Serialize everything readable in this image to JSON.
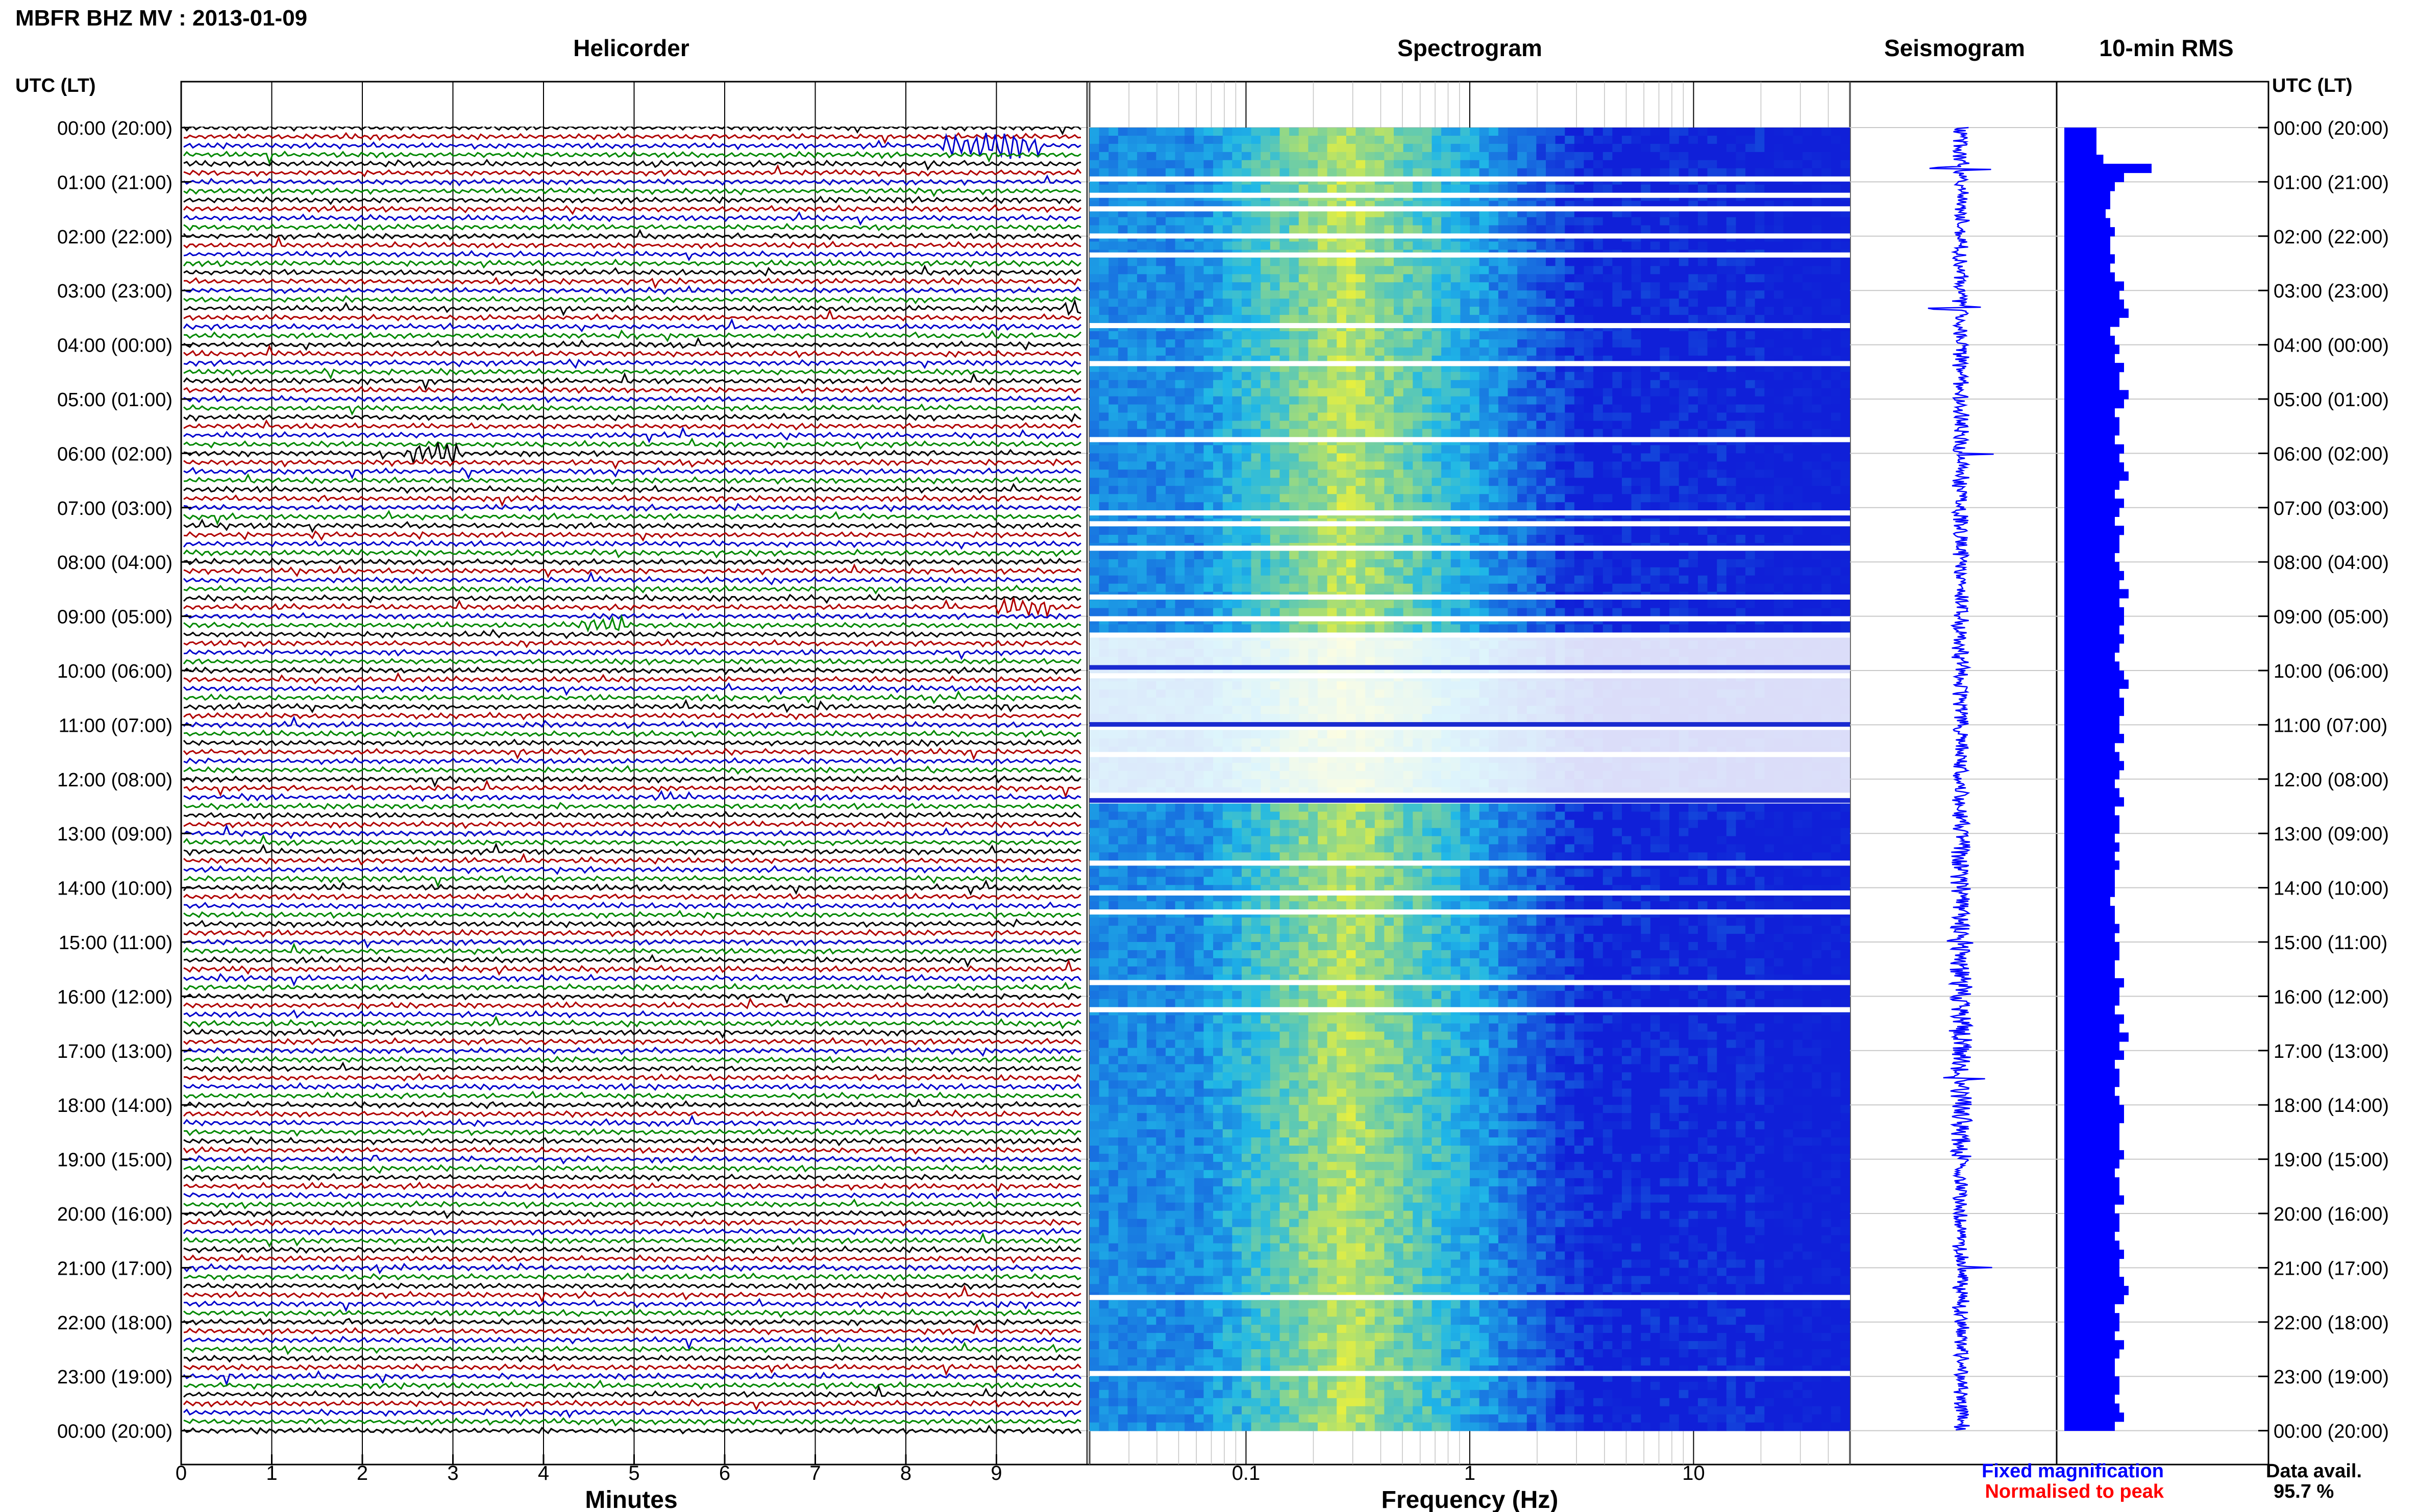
{
  "title": "MBFR BHZ MV : 2013-01-09",
  "panels": {
    "helicorder": "Helicorder",
    "spectrogram": "Spectrogram",
    "seismogram": "Seismogram",
    "rms": "10-min RMS"
  },
  "utc_header_left": "UTC (LT)",
  "utc_header_right": "UTC (LT)",
  "time_labels": [
    "00:00 (20:00)",
    "01:00 (21:00)",
    "02:00 (22:00)",
    "03:00 (23:00)",
    "04:00 (00:00)",
    "05:00 (01:00)",
    "06:00 (02:00)",
    "07:00 (03:00)",
    "08:00 (04:00)",
    "09:00 (05:00)",
    "10:00 (06:00)",
    "11:00 (07:00)",
    "12:00 (08:00)",
    "13:00 (09:00)",
    "14:00 (10:00)",
    "15:00 (11:00)",
    "16:00 (12:00)",
    "17:00 (13:00)",
    "18:00 (14:00)",
    "19:00 (15:00)",
    "20:00 (16:00)",
    "21:00 (17:00)",
    "22:00 (18:00)",
    "23:00 (19:00)",
    "00:00 (20:00)"
  ],
  "minutes_ticks": [
    "0",
    "1",
    "2",
    "3",
    "4",
    "5",
    "6",
    "7",
    "8",
    "9"
  ],
  "minutes_label": "Minutes",
  "freq_ticks": [
    "0.1",
    "1",
    "10"
  ],
  "freq_label": "Frequency (Hz)",
  "legend": {
    "fixed": "Fixed magnification",
    "fixed_color": "#0000ff",
    "normalised": "Normalised to peak",
    "normalised_color": "#ff0000"
  },
  "data_avail": {
    "label": "Data avail.",
    "value": "95.7 %"
  },
  "colors": {
    "trace_cycle": [
      "#000000",
      "#b00000",
      "#0000cc",
      "#008800"
    ],
    "spectrogram_low": "#1020d8",
    "spectrogram_mid": "#20b8e8",
    "spectrogram_high": "#e8f040",
    "rms_bar": "#0000ff"
  },
  "chart_data": [
    {
      "type": "line",
      "name_panel": "Helicorder",
      "xlabel": "Minutes",
      "xlim": [
        0,
        10
      ],
      "ylim_hours": [
        0,
        24
      ],
      "lines_per_hour": 6,
      "events": [
        {
          "hour": 0.33,
          "minute": 8.4,
          "duration_min": 1.1,
          "strength": 1.0
        },
        {
          "hour": 3.33,
          "minute": 9.7,
          "duration_min": 0.3,
          "strength": 0.9
        },
        {
          "hour": 6.0,
          "minute": 2.55,
          "duration_min": 0.5,
          "strength": 1.0
        },
        {
          "hour": 8.83,
          "minute": 9.0,
          "duration_min": 0.6,
          "strength": 0.6
        },
        {
          "hour": 9.17,
          "minute": 4.4,
          "duration_min": 0.5,
          "strength": 0.6
        }
      ]
    },
    {
      "type": "heatmap",
      "name_panel": "Spectrogram",
      "xlabel": "Frequency (Hz)",
      "x_scale": "log",
      "xlim": [
        0.02,
        50
      ],
      "ylim_hours": [
        0,
        24
      ],
      "peak_band_hz": [
        0.2,
        0.5
      ]
    },
    {
      "type": "line",
      "name_panel": "Seismogram",
      "ylim_hours": [
        0,
        24
      ],
      "spikes_hours": [
        0.75,
        3.33,
        6.0,
        15.0,
        17.5,
        21.0
      ]
    },
    {
      "type": "bar",
      "name_panel": "10-min RMS",
      "orientation": "horizontal",
      "interval_minutes": 10,
      "values": [
        0.7,
        0.7,
        0.7,
        0.85,
        1.9,
        1.3,
        1.1,
        1.0,
        1.0,
        0.9,
        1.0,
        1.1,
        1.0,
        1.0,
        1.1,
        1.0,
        1.1,
        1.3,
        1.2,
        1.3,
        1.4,
        1.2,
        1.0,
        1.1,
        1.2,
        1.1,
        1.3,
        1.2,
        1.2,
        1.4,
        1.3,
        1.1,
        1.2,
        1.2,
        1.1,
        1.3,
        1.2,
        1.3,
        1.4,
        1.2,
        1.1,
        1.3,
        1.2,
        1.1,
        1.3,
        1.2,
        1.2,
        1.1,
        1.2,
        1.3,
        1.2,
        1.4,
        1.2,
        1.3,
        1.3,
        1.2,
        1.3,
        1.2,
        1.1,
        1.2,
        1.3,
        1.4,
        1.2,
        1.3,
        1.3,
        1.2,
        1.2,
        1.3,
        1.1,
        1.2,
        1.3,
        1.2,
        1.1,
        1.2,
        1.3,
        1.1,
        1.2,
        1.2,
        1.1,
        1.2,
        1.1,
        1.2,
        1.1,
        1.1,
        1.1,
        1.0,
        1.1,
        1.1,
        1.2,
        1.1,
        1.2,
        1.2,
        1.1,
        1.1,
        1.3,
        1.2,
        1.2,
        1.1,
        1.3,
        1.2,
        1.4,
        1.2,
        1.3,
        1.1,
        1.2,
        1.2,
        1.1,
        1.2,
        1.3,
        1.3,
        1.2,
        1.2,
        1.2,
        1.3,
        1.2,
        1.1,
        1.2,
        1.2,
        1.3,
        1.1,
        1.2,
        1.2,
        1.1,
        1.2,
        1.3,
        1.2,
        1.2,
        1.3,
        1.4,
        1.3,
        1.1,
        1.2,
        1.2,
        1.1,
        1.3,
        1.2,
        1.1,
        1.1,
        1.2,
        1.2,
        1.1,
        1.2,
        1.3,
        1.1
      ]
    }
  ]
}
